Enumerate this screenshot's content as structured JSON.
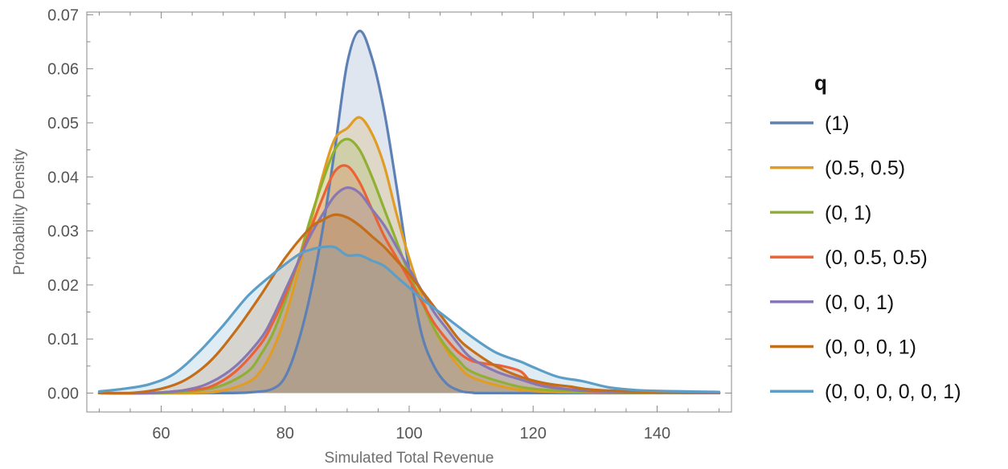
{
  "chart_data": {
    "type": "area",
    "xlabel": "Simulated Total Revenue",
    "ylabel": "Probability Density",
    "xlim": [
      48,
      152
    ],
    "ylim": [
      -0.0035,
      0.0705
    ],
    "x_ticks": [
      60,
      80,
      100,
      120,
      140
    ],
    "x_tick_labels": [
      "60",
      "80",
      "100",
      "120",
      "140"
    ],
    "y_ticks": [
      0.0,
      0.01,
      0.02,
      0.03,
      0.04,
      0.05,
      0.06,
      0.07
    ],
    "y_tick_labels": [
      "0.00",
      "0.01",
      "0.02",
      "0.03",
      "0.04",
      "0.05",
      "0.06",
      "0.07"
    ],
    "grid": false,
    "legend": {
      "title": "q",
      "position": "right"
    },
    "series": [
      {
        "name": "(1)",
        "color": "#5e81b5",
        "points": [
          [
            50,
            0
          ],
          [
            70,
            0
          ],
          [
            75,
            0.0002
          ],
          [
            78,
            0.0008
          ],
          [
            80,
            0.003
          ],
          [
            82,
            0.009
          ],
          [
            84,
            0.018
          ],
          [
            86,
            0.03
          ],
          [
            88,
            0.045
          ],
          [
            90,
            0.061
          ],
          [
            92,
            0.067
          ],
          [
            94,
            0.062
          ],
          [
            96,
            0.052
          ],
          [
            98,
            0.038
          ],
          [
            100,
            0.023
          ],
          [
            102,
            0.011
          ],
          [
            104,
            0.005
          ],
          [
            106,
            0.0018
          ],
          [
            108,
            0.0005
          ],
          [
            110,
            0.0001
          ],
          [
            115,
            0
          ],
          [
            150,
            0
          ]
        ]
      },
      {
        "name": "(0.5, 0.5)",
        "color": "#e19c24",
        "points": [
          [
            50,
            0
          ],
          [
            65,
            0
          ],
          [
            70,
            0.0005
          ],
          [
            74,
            0.002
          ],
          [
            76,
            0.004
          ],
          [
            78,
            0.008
          ],
          [
            80,
            0.014
          ],
          [
            82,
            0.022
          ],
          [
            84,
            0.031
          ],
          [
            86,
            0.04
          ],
          [
            88,
            0.047
          ],
          [
            90,
            0.049
          ],
          [
            92,
            0.051
          ],
          [
            94,
            0.048
          ],
          [
            96,
            0.042
          ],
          [
            98,
            0.033
          ],
          [
            100,
            0.025
          ],
          [
            102,
            0.018
          ],
          [
            104,
            0.012
          ],
          [
            106,
            0.008
          ],
          [
            108,
            0.005
          ],
          [
            110,
            0.003
          ],
          [
            115,
            0.0012
          ],
          [
            120,
            0.0004
          ],
          [
            130,
            0.0001
          ],
          [
            150,
            0
          ]
        ]
      },
      {
        "name": "(0, 1)",
        "color": "#8fb032",
        "points": [
          [
            50,
            0
          ],
          [
            60,
            0
          ],
          [
            66,
            0.0005
          ],
          [
            70,
            0.0015
          ],
          [
            74,
            0.004
          ],
          [
            76,
            0.007
          ],
          [
            78,
            0.011
          ],
          [
            80,
            0.017
          ],
          [
            82,
            0.024
          ],
          [
            84,
            0.032
          ],
          [
            86,
            0.039
          ],
          [
            88,
            0.045
          ],
          [
            90,
            0.047
          ],
          [
            92,
            0.045
          ],
          [
            94,
            0.04
          ],
          [
            96,
            0.034
          ],
          [
            98,
            0.028
          ],
          [
            100,
            0.022
          ],
          [
            102,
            0.017
          ],
          [
            104,
            0.012
          ],
          [
            106,
            0.0085
          ],
          [
            108,
            0.006
          ],
          [
            110,
            0.004
          ],
          [
            115,
            0.002
          ],
          [
            120,
            0.0008
          ],
          [
            130,
            0.0002
          ],
          [
            150,
            0
          ]
        ]
      },
      {
        "name": "(0, 0.5, 0.5)",
        "color": "#eb6235",
        "points": [
          [
            50,
            0
          ],
          [
            58,
            0
          ],
          [
            64,
            0.0005
          ],
          [
            68,
            0.0012
          ],
          [
            72,
            0.004
          ],
          [
            76,
            0.009
          ],
          [
            78,
            0.013
          ],
          [
            80,
            0.018
          ],
          [
            82,
            0.024
          ],
          [
            84,
            0.03
          ],
          [
            86,
            0.036
          ],
          [
            88,
            0.041
          ],
          [
            90,
            0.042
          ],
          [
            92,
            0.039
          ],
          [
            94,
            0.034
          ],
          [
            96,
            0.029
          ],
          [
            98,
            0.025
          ],
          [
            100,
            0.021
          ],
          [
            102,
            0.017
          ],
          [
            104,
            0.013
          ],
          [
            106,
            0.01
          ],
          [
            108,
            0.0075
          ],
          [
            110,
            0.006
          ],
          [
            112,
            0.0055
          ],
          [
            115,
            0.005
          ],
          [
            118,
            0.004
          ],
          [
            120,
            0.002
          ],
          [
            125,
            0.0008
          ],
          [
            130,
            0.0003
          ],
          [
            140,
            0.0001
          ],
          [
            150,
            0
          ]
        ]
      },
      {
        "name": "(0, 0, 1)",
        "color": "#8778b3",
        "points": [
          [
            50,
            0
          ],
          [
            58,
            0
          ],
          [
            64,
            0.0006
          ],
          [
            68,
            0.002
          ],
          [
            72,
            0.005
          ],
          [
            76,
            0.01
          ],
          [
            78,
            0.014
          ],
          [
            80,
            0.019
          ],
          [
            82,
            0.024
          ],
          [
            84,
            0.029
          ],
          [
            86,
            0.033
          ],
          [
            88,
            0.0365
          ],
          [
            90,
            0.038
          ],
          [
            92,
            0.037
          ],
          [
            94,
            0.034
          ],
          [
            96,
            0.031
          ],
          [
            98,
            0.027
          ],
          [
            100,
            0.023
          ],
          [
            102,
            0.019
          ],
          [
            104,
            0.015
          ],
          [
            106,
            0.012
          ],
          [
            108,
            0.009
          ],
          [
            110,
            0.0065
          ],
          [
            114,
            0.004
          ],
          [
            118,
            0.0025
          ],
          [
            122,
            0.0012
          ],
          [
            128,
            0.0005
          ],
          [
            135,
            0.0002
          ],
          [
            150,
            0
          ]
        ]
      },
      {
        "name": "(0, 0, 0, 1)",
        "color": "#c56e1a",
        "points": [
          [
            50,
            0
          ],
          [
            55,
            0
          ],
          [
            60,
            0.0008
          ],
          [
            64,
            0.0025
          ],
          [
            68,
            0.006
          ],
          [
            72,
            0.0115
          ],
          [
            76,
            0.018
          ],
          [
            80,
            0.025
          ],
          [
            84,
            0.0305
          ],
          [
            86,
            0.032
          ],
          [
            88,
            0.033
          ],
          [
            90,
            0.0325
          ],
          [
            92,
            0.031
          ],
          [
            94,
            0.029
          ],
          [
            96,
            0.027
          ],
          [
            98,
            0.0245
          ],
          [
            100,
            0.022
          ],
          [
            102,
            0.019
          ],
          [
            104,
            0.016
          ],
          [
            106,
            0.013
          ],
          [
            108,
            0.01
          ],
          [
            110,
            0.008
          ],
          [
            114,
            0.005
          ],
          [
            118,
            0.003
          ],
          [
            122,
            0.0018
          ],
          [
            126,
            0.0012
          ],
          [
            130,
            0.0006
          ],
          [
            140,
            0.0002
          ],
          [
            150,
            0.0001
          ]
        ]
      },
      {
        "name": "(0, 0, 0, 0, 0, 1)",
        "color": "#5d9ec7",
        "points": [
          [
            50,
            0.0003
          ],
          [
            54,
            0.0008
          ],
          [
            58,
            0.0016
          ],
          [
            62,
            0.0035
          ],
          [
            66,
            0.0075
          ],
          [
            70,
            0.0125
          ],
          [
            74,
            0.018
          ],
          [
            78,
            0.022
          ],
          [
            82,
            0.0255
          ],
          [
            84,
            0.0265
          ],
          [
            86,
            0.027
          ],
          [
            88,
            0.027
          ],
          [
            90,
            0.0255
          ],
          [
            92,
            0.0255
          ],
          [
            94,
            0.0245
          ],
          [
            96,
            0.0235
          ],
          [
            98,
            0.0215
          ],
          [
            100,
            0.0195
          ],
          [
            102,
            0.0175
          ],
          [
            106,
            0.014
          ],
          [
            110,
            0.0105
          ],
          [
            114,
            0.0075
          ],
          [
            118,
            0.0058
          ],
          [
            120,
            0.0048
          ],
          [
            124,
            0.003
          ],
          [
            128,
            0.0022
          ],
          [
            132,
            0.0011
          ],
          [
            136,
            0.0006
          ],
          [
            140,
            0.0004
          ],
          [
            145,
            0.0003
          ],
          [
            150,
            0.0002
          ]
        ]
      }
    ]
  }
}
